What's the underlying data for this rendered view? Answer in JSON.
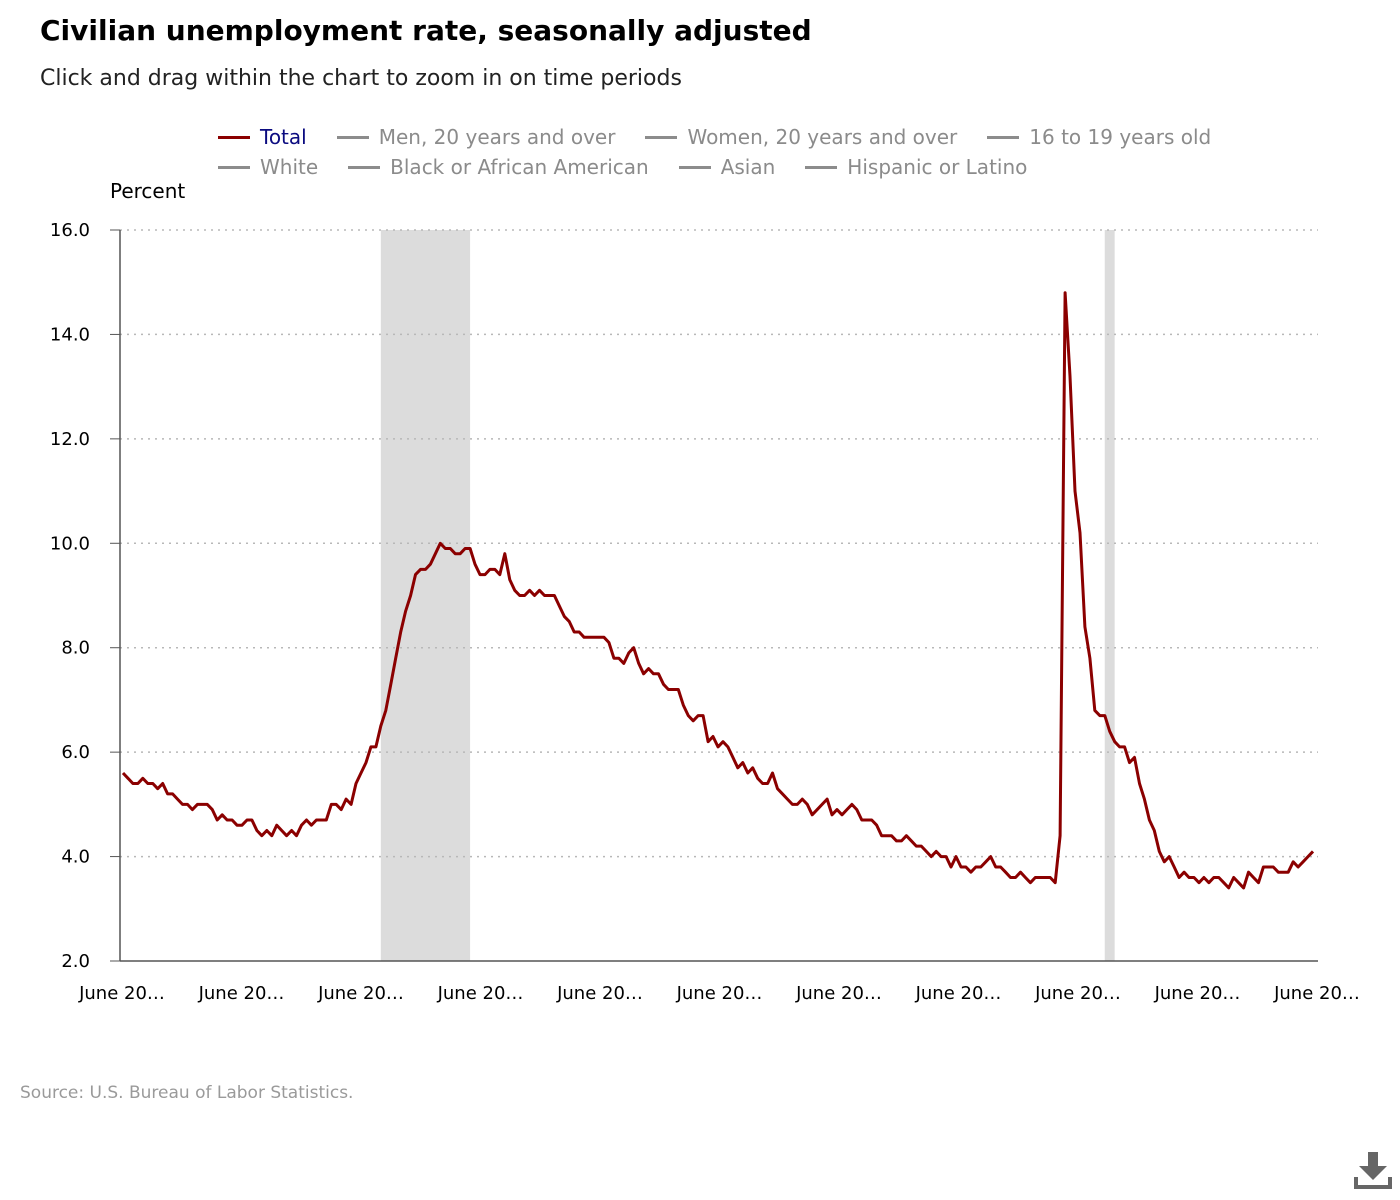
{
  "title": "Civilian unemployment rate, seasonally adjusted",
  "subtitle": "Click and drag within the chart to zoom in on time periods",
  "legend": {
    "rows": [
      [
        {
          "label": "Total",
          "active": true
        },
        {
          "label": "Men, 20 years and over",
          "active": false
        },
        {
          "label": "Women, 20 years and over",
          "active": false
        },
        {
          "label": "16 to 19 years old",
          "active": false
        }
      ],
      [
        {
          "label": "White",
          "active": false
        },
        {
          "label": "Black or African American",
          "active": false
        },
        {
          "label": "Asian",
          "active": false
        },
        {
          "label": "Hispanic or Latino",
          "active": false
        }
      ]
    ]
  },
  "source": "Source: U.S. Bureau of Labor Statistics.",
  "icons": {
    "download": "download-icon"
  },
  "colors": {
    "series": "#8b0000",
    "recession": "#dcdcdc",
    "grid": "#b8b8b8",
    "legend_active": "#0b0b80",
    "legend_inactive": "#8b8b8b"
  },
  "chart_data": {
    "type": "line",
    "ylabel": "Percent",
    "ylim": [
      2.0,
      16.0
    ],
    "yticks": [
      "2.0",
      "4.0",
      "6.0",
      "8.0",
      "10.0",
      "12.0",
      "14.0",
      "16.0"
    ],
    "xtick_labels": [
      "June 20…",
      "June 20…",
      "June 20…",
      "June 20…",
      "June 20…",
      "June 20…",
      "June 20…",
      "June 20…",
      "June 20…",
      "June 20…",
      "June 20…"
    ],
    "grid": "horizontal dotted",
    "legend_position": "top",
    "recession_bands": [
      {
        "from": 52.0,
        "to": 70.0
      },
      {
        "from": 198.0,
        "to": 200.0
      }
    ],
    "series": [
      {
        "name": "Total",
        "values": [
          5.6,
          5.5,
          5.4,
          5.4,
          5.5,
          5.4,
          5.4,
          5.3,
          5.4,
          5.2,
          5.2,
          5.1,
          5.0,
          5.0,
          4.9,
          5.0,
          5.0,
          5.0,
          4.9,
          4.7,
          4.8,
          4.7,
          4.7,
          4.6,
          4.6,
          4.7,
          4.7,
          4.5,
          4.4,
          4.5,
          4.4,
          4.6,
          4.5,
          4.4,
          4.5,
          4.4,
          4.6,
          4.7,
          4.6,
          4.7,
          4.7,
          4.7,
          5.0,
          5.0,
          4.9,
          5.1,
          5.0,
          5.4,
          5.6,
          5.8,
          6.1,
          6.1,
          6.5,
          6.8,
          7.3,
          7.8,
          8.3,
          8.7,
          9.0,
          9.4,
          9.5,
          9.5,
          9.6,
          9.8,
          10.0,
          9.9,
          9.9,
          9.8,
          9.8,
          9.9,
          9.9,
          9.6,
          9.4,
          9.4,
          9.5,
          9.5,
          9.4,
          9.8,
          9.3,
          9.1,
          9.0,
          9.0,
          9.1,
          9.0,
          9.1,
          9.0,
          9.0,
          9.0,
          8.8,
          8.6,
          8.5,
          8.3,
          8.3,
          8.2,
          8.2,
          8.2,
          8.2,
          8.2,
          8.1,
          7.8,
          7.8,
          7.7,
          7.9,
          8.0,
          7.7,
          7.5,
          7.6,
          7.5,
          7.5,
          7.3,
          7.2,
          7.2,
          7.2,
          6.9,
          6.7,
          6.6,
          6.7,
          6.7,
          6.2,
          6.3,
          6.1,
          6.2,
          6.1,
          5.9,
          5.7,
          5.8,
          5.6,
          5.7,
          5.5,
          5.4,
          5.4,
          5.6,
          5.3,
          5.2,
          5.1,
          5.0,
          5.0,
          5.1,
          5.0,
          4.8,
          4.9,
          5.0,
          5.1,
          4.8,
          4.9,
          4.8,
          4.9,
          5.0,
          4.9,
          4.7,
          4.7,
          4.7,
          4.6,
          4.4,
          4.4,
          4.4,
          4.3,
          4.3,
          4.4,
          4.3,
          4.2,
          4.2,
          4.1,
          4.0,
          4.1,
          4.0,
          4.0,
          3.8,
          4.0,
          3.8,
          3.8,
          3.7,
          3.8,
          3.8,
          3.9,
          4.0,
          3.8,
          3.8,
          3.7,
          3.6,
          3.6,
          3.7,
          3.6,
          3.5,
          3.6,
          3.6,
          3.6,
          3.6,
          3.5,
          4.4,
          14.8,
          13.2,
          11.0,
          10.2,
          8.4,
          7.8,
          6.8,
          6.7,
          6.7,
          6.4,
          6.2,
          6.1,
          6.1,
          5.8,
          5.9,
          5.4,
          5.1,
          4.7,
          4.5,
          4.1,
          3.9,
          4.0,
          3.8,
          3.6,
          3.7,
          3.6,
          3.6,
          3.5,
          3.6,
          3.5,
          3.6,
          3.6,
          3.5,
          3.4,
          3.6,
          3.5,
          3.4,
          3.7,
          3.6,
          3.5,
          3.8,
          3.8,
          3.8,
          3.7,
          3.7,
          3.7,
          3.9,
          3.8,
          3.9,
          4.0,
          4.1
        ]
      }
    ]
  }
}
